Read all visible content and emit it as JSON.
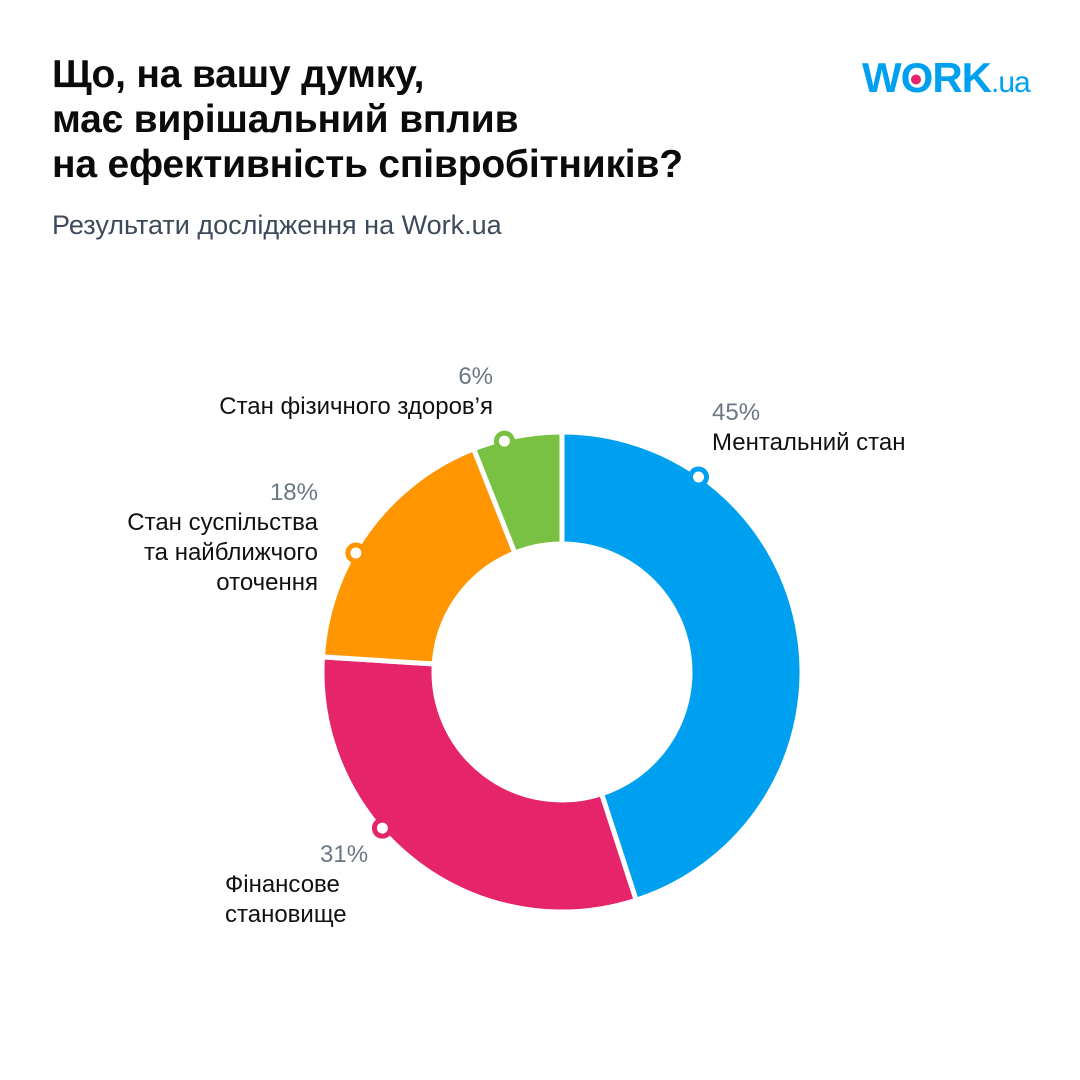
{
  "title_lines": [
    "Що, на вашу думку,",
    "має вирішальний вплив",
    "на ефективність співробітників?"
  ],
  "subtitle": "Результати дослідження на Work.ua",
  "logo": {
    "main_w": "W",
    "main_o": "O",
    "main_rk": "RK",
    "suffix": ".ua",
    "color": "#00a0f0",
    "dot_color": "#e5246a"
  },
  "chart_data": {
    "type": "pie",
    "donut": true,
    "title": "Що, на вашу думку, має вирішальний вплив на ефективність співробітників?",
    "categories": [
      "Ментальний стан",
      "Фінансове становище",
      "Стан суспільства та найближчого оточення",
      "Стан фізичного здоров’я"
    ],
    "values": [
      45,
      31,
      18,
      6
    ],
    "value_labels": [
      "45%",
      "31%",
      "18%",
      "6%"
    ],
    "colors": [
      "#00a0f0",
      "#e5246a",
      "#ff9500",
      "#78c142"
    ],
    "label_lines": [
      [
        "Ментальний стан"
      ],
      [
        "Фінансове",
        "становище"
      ],
      [
        "Стан суспільства",
        "та найближчого",
        "оточення"
      ],
      [
        "Стан фізичного здоров’я"
      ]
    ]
  }
}
